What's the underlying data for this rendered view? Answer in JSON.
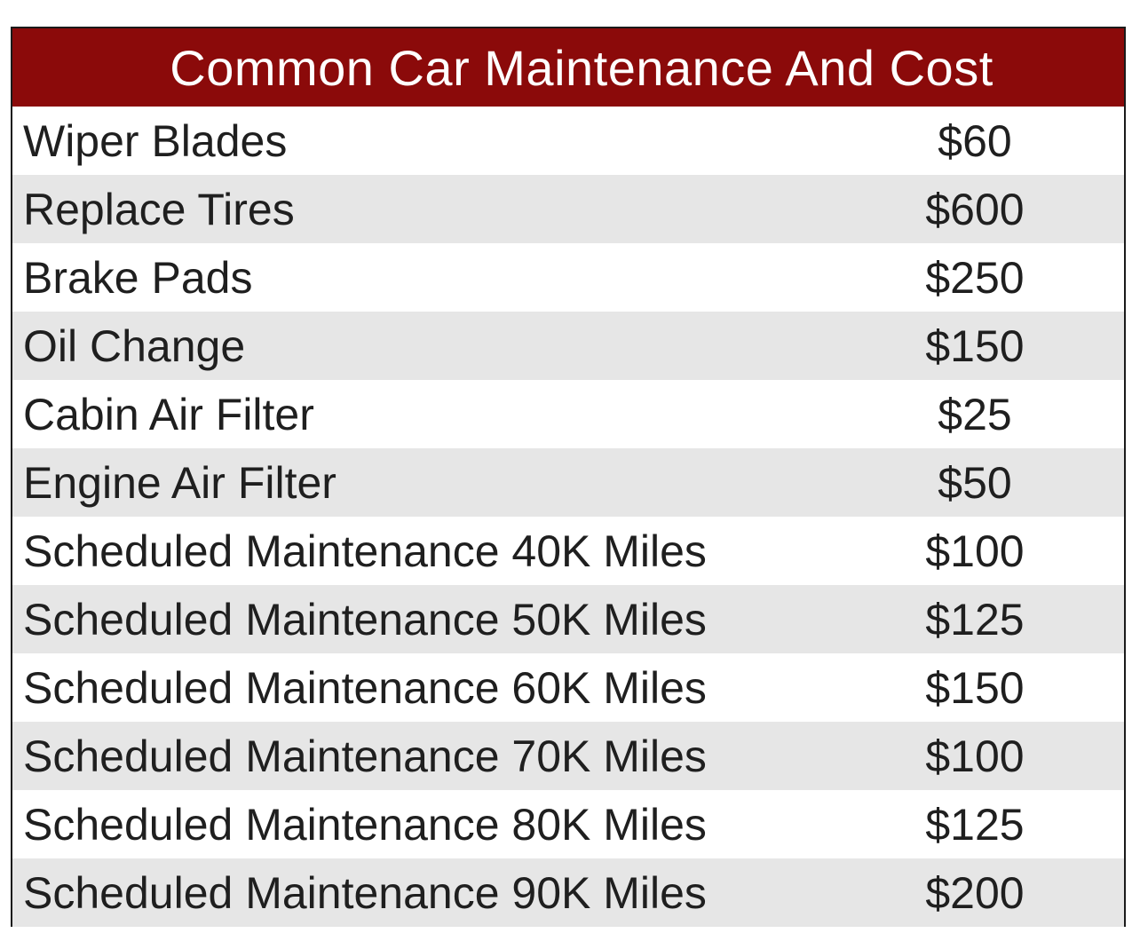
{
  "table": {
    "title": "Common Car Maintenance And Cost",
    "rows": [
      {
        "item": "Wiper Blades",
        "cost": "$60"
      },
      {
        "item": "Replace Tires",
        "cost": "$600"
      },
      {
        "item": "Brake Pads",
        "cost": "$250"
      },
      {
        "item": "Oil Change",
        "cost": "$150"
      },
      {
        "item": "Cabin Air Filter",
        "cost": "$25"
      },
      {
        "item": "Engine Air Filter",
        "cost": "$50"
      },
      {
        "item": "Scheduled Maintenance 40K Miles",
        "cost": "$100"
      },
      {
        "item": "Scheduled Maintenance 50K Miles",
        "cost": "$125"
      },
      {
        "item": "Scheduled Maintenance 60K Miles",
        "cost": "$150"
      },
      {
        "item": "Scheduled Maintenance 70K Miles",
        "cost": "$100"
      },
      {
        "item": "Scheduled Maintenance 80K Miles",
        "cost": "$125"
      },
      {
        "item": "Scheduled Maintenance 90K Miles",
        "cost": "$200"
      }
    ]
  },
  "colors": {
    "header_background": "#8b0a0a",
    "header_text": "#ffffff",
    "stripe": "#e6e6e6"
  }
}
